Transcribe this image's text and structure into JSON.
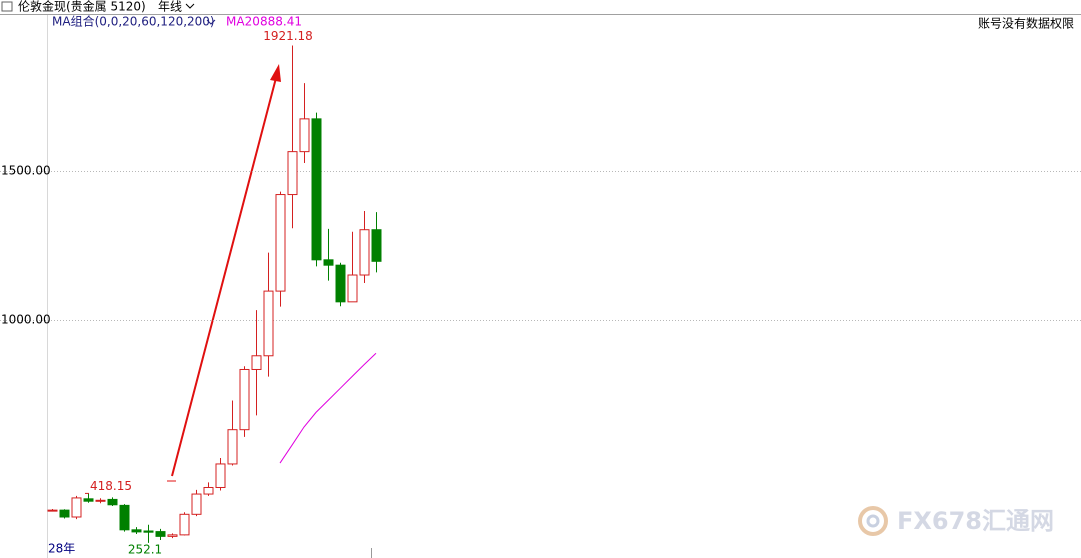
{
  "chart_data": {
    "type": "candlestick",
    "title": "伦敦金现(贵金属 5120)",
    "period": "年线",
    "indicator": "MA组合(0,0,20,60,120,200)",
    "notice": "账号没有数据权限",
    "x_start_label": "28年",
    "watermark": "FX678汇通网",
    "up_color": "#d42020",
    "down_color": "#008000",
    "open": [
      362,
      362,
      339,
      400,
      392,
      398,
      378,
      296,
      292,
      290,
      274,
      279,
      348,
      416,
      438,
      517,
      632,
      834,
      880,
      1097,
      1421,
      1565,
      1675,
      1202,
      1184,
      1061,
      1151,
      1303
    ],
    "high": [
      366,
      365,
      410,
      418.15,
      402,
      405,
      382,
      305,
      313,
      299,
      284,
      355,
      430,
      455,
      537,
      730,
      845,
      1033,
      1226,
      1431,
      1921.18,
      1795,
      1696,
      1306,
      1192,
      1296,
      1366,
      1362
    ],
    "low": [
      358,
      334,
      332,
      387,
      385,
      376,
      290,
      282,
      252.1,
      262,
      268,
      277,
      342,
      410,
      428,
      512,
      608,
      680,
      810,
      1045,
      1308,
      1527,
      1180,
      1132,
      1046,
      1061,
      1124,
      1160
    ],
    "close": [
      362,
      339,
      403,
      392,
      395,
      380,
      296,
      289,
      288,
      274,
      279,
      348,
      416,
      438,
      517,
      632,
      834,
      880,
      1097,
      1421,
      1565,
      1675,
      1202,
      1184,
      1061,
      1151,
      1303,
      1197
    ],
    "series": [
      {
        "name": "MA20",
        "color": "#e000e0",
        "values": [
          null,
          null,
          null,
          null,
          null,
          null,
          null,
          null,
          null,
          null,
          null,
          null,
          null,
          null,
          null,
          null,
          null,
          null,
          null,
          520,
          580,
          641,
          690,
          730,
          770,
          810,
          850,
          888.41
        ]
      }
    ],
    "ylim": [
      201.4,
      2023.5
    ],
    "yticks": [
      {
        "value": 1000,
        "label": "1000.00"
      },
      {
        "value": 1500,
        "label": "1500.00"
      }
    ],
    "grid": true
  }
}
